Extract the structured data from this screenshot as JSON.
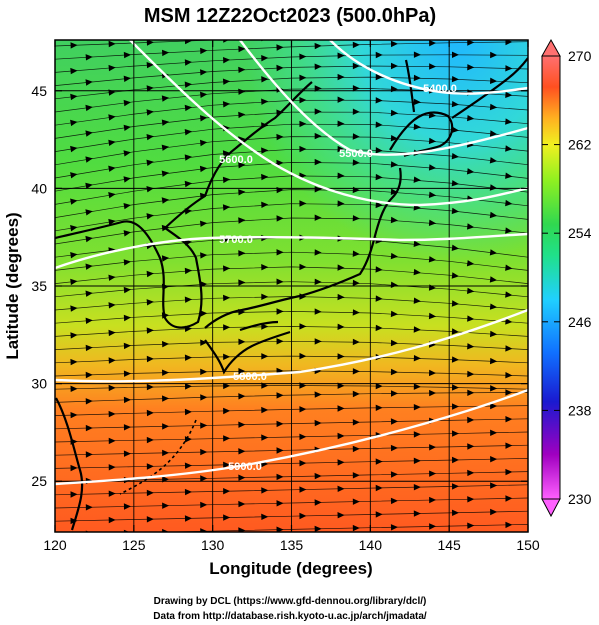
{
  "title": "MSM 12Z22Oct2023 (500.0hPa)",
  "x_axis": {
    "label": "Longitude (degrees)",
    "range": [
      120,
      150
    ],
    "ticks": [
      "120",
      "125",
      "130",
      "135",
      "140",
      "145",
      "150"
    ]
  },
  "y_axis": {
    "label": "Latitude  (degrees)",
    "range": [
      22.4,
      47.6
    ],
    "ticks": [
      "25",
      "30",
      "35",
      "40",
      "45"
    ]
  },
  "colorbar": {
    "min": 230,
    "max": 270,
    "ticks": [
      "270",
      "262",
      "254",
      "246",
      "238",
      "230"
    ],
    "colors": [
      "#ff40ff",
      "#b000c0",
      "#2020c0",
      "#1060ff",
      "#20c8ff",
      "#20e0a0",
      "#20d060",
      "#40e020",
      "#c0f020",
      "#ffd820",
      "#ff9020",
      "#ff4020",
      "#ff8080"
    ]
  },
  "contours": [
    {
      "label": "5400.0"
    },
    {
      "label": "5500.0"
    },
    {
      "label": "5600.0"
    },
    {
      "label": "5700.0"
    },
    {
      "label": "5800.0"
    },
    {
      "label": "5900.0"
    }
  ],
  "credits": {
    "line1": "Drawing by DCL (https://www.gfd-dennou.org/library/dcl/)",
    "line2": "Data from http://database.rish.kyoto-u.ac.jp/arch/jmadata/"
  }
}
